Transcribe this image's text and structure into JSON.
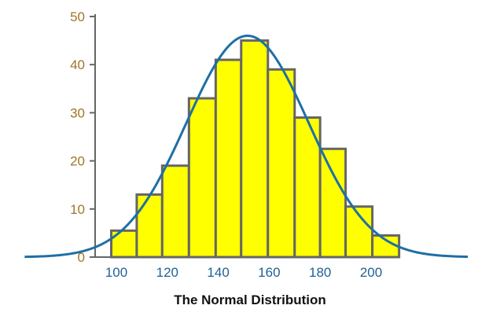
{
  "chart_data": {
    "type": "bar",
    "title": "The Normal Distribution",
    "xlabel": "",
    "ylabel": "",
    "x_ticks": [
      100,
      120,
      140,
      160,
      180,
      200
    ],
    "y_ticks": [
      0,
      10,
      20,
      30,
      40,
      50
    ],
    "ylim": [
      0,
      50
    ],
    "bins": [
      {
        "start": 98,
        "end": 108,
        "value": 5.5
      },
      {
        "start": 108,
        "end": 118,
        "value": 13
      },
      {
        "start": 118,
        "end": 128.5,
        "value": 19
      },
      {
        "start": 128.5,
        "end": 139,
        "value": 33
      },
      {
        "start": 139,
        "end": 149,
        "value": 41
      },
      {
        "start": 149,
        "end": 159.5,
        "value": 45
      },
      {
        "start": 159.5,
        "end": 170,
        "value": 39
      },
      {
        "start": 170,
        "end": 180,
        "value": 29
      },
      {
        "start": 180,
        "end": 190,
        "value": 22.5
      },
      {
        "start": 190,
        "end": 200.5,
        "value": 10.5
      },
      {
        "start": 200.5,
        "end": 211,
        "value": 4.5
      }
    ],
    "curve": {
      "type": "normal",
      "mean": 151.5,
      "sd": 24,
      "peak": 46,
      "x_range": [
        64,
        238
      ]
    },
    "colors": {
      "bar_fill": "#ffff00",
      "bar_stroke": "#666666",
      "curve": "#1f6fa5",
      "x_tick_label": "#1f5f96",
      "y_tick_label": "#a0752a",
      "axis": "#666666"
    }
  }
}
